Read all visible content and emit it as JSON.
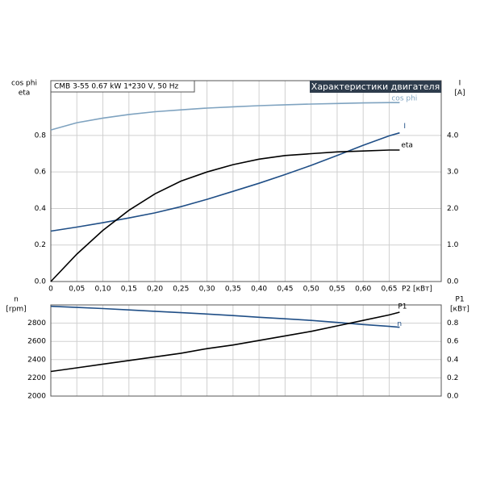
{
  "chart_data": [
    {
      "type": "line",
      "header": "CMB 3-55   0.67 kW   1*230 V, 50 Hz",
      "title": "Характеристики двигателя",
      "ylabel_lines": [
        "cos phi",
        "eta"
      ],
      "y2label_lines": [
        "I",
        "[A]"
      ],
      "xlabel": "P2 [кВт]",
      "xlim": [
        0,
        0.75
      ],
      "xticks": [
        0,
        {
          "value": 0.05,
          "label": "0,05"
        },
        {
          "value": 0.1,
          "label": "0,10"
        },
        {
          "value": 0.15,
          "label": "0,15"
        },
        {
          "value": 0.2,
          "label": "0,20"
        },
        {
          "value": 0.25,
          "label": "0,25"
        },
        {
          "value": 0.3,
          "label": "0,30"
        },
        {
          "value": 0.35,
          "label": "0,35"
        },
        {
          "value": 0.4,
          "label": "0,40"
        },
        {
          "value": 0.45,
          "label": "0,45"
        },
        {
          "value": 0.5,
          "label": "0,50"
        },
        {
          "value": 0.55,
          "label": "0,55"
        },
        {
          "value": 0.6,
          "label": "0,60"
        },
        {
          "value": 0.65,
          "label": "0,65"
        }
      ],
      "ylim": [
        0,
        1.1
      ],
      "yticks": [
        {
          "value": 0,
          "label": "0.0"
        },
        0.2,
        0.4,
        0.6,
        0.8
      ],
      "y2lim": [
        0,
        5.5
      ],
      "y2ticks": [
        {
          "value": 0,
          "label": "0.0"
        },
        {
          "value": 1,
          "label": "1.0"
        },
        {
          "value": 2,
          "label": "2.0"
        },
        {
          "value": 3,
          "label": "3.0"
        },
        {
          "value": 4,
          "label": "4.0"
        }
      ],
      "grid": true,
      "x": [
        0,
        0.05,
        0.1,
        0.15,
        0.2,
        0.25,
        0.3,
        0.35,
        0.4,
        0.45,
        0.5,
        0.55,
        0.6,
        0.65,
        0.67
      ],
      "series": [
        {
          "name": "cos phi",
          "color": "#7fa3c0",
          "values": [
            0.83,
            0.87,
            0.895,
            0.915,
            0.93,
            0.94,
            0.95,
            0.957,
            0.963,
            0.968,
            0.972,
            0.975,
            0.978,
            0.98,
            0.98
          ]
        },
        {
          "name": "I",
          "color": "#1f4e86",
          "axis": "y2",
          "values": [
            1.38,
            1.49,
            1.61,
            1.74,
            1.88,
            2.05,
            2.25,
            2.47,
            2.69,
            2.93,
            3.18,
            3.45,
            3.73,
            3.99,
            4.07
          ]
        },
        {
          "name": "eta",
          "color": "#000000",
          "values": [
            0,
            0.15,
            0.28,
            0.39,
            0.48,
            0.55,
            0.6,
            0.64,
            0.67,
            0.69,
            0.7,
            0.71,
            0.715,
            0.72,
            0.72
          ]
        }
      ]
    },
    {
      "type": "line",
      "ylabel_lines": [
        "n",
        "[rpm]"
      ],
      "y2label_lines": [
        "P1",
        "[кВт]"
      ],
      "xlim": [
        0,
        0.75
      ],
      "xticks": [
        0,
        0.05,
        0.1,
        0.15,
        0.2,
        0.25,
        0.3,
        0.35,
        0.4,
        0.45,
        0.5,
        0.55,
        0.6,
        0.65
      ],
      "ylim": [
        2000,
        3000
      ],
      "yticks": [
        2000,
        2200,
        2400,
        2600,
        2800
      ],
      "y2lim": [
        0,
        1.0
      ],
      "y2ticks": [
        {
          "value": 0,
          "label": "0.0"
        },
        0.2,
        0.4,
        0.6,
        0.8
      ],
      "grid": true,
      "x": [
        0,
        0.05,
        0.1,
        0.15,
        0.2,
        0.25,
        0.3,
        0.35,
        0.4,
        0.45,
        0.5,
        0.55,
        0.6,
        0.65,
        0.67
      ],
      "series": [
        {
          "name": "n",
          "color": "#1f4e86",
          "values": [
            2985,
            2973,
            2960,
            2945,
            2930,
            2915,
            2900,
            2883,
            2865,
            2848,
            2830,
            2808,
            2785,
            2765,
            2755
          ]
        },
        {
          "name": "P1",
          "color": "#000000",
          "axis": "y2",
          "values": [
            0.27,
            0.31,
            0.35,
            0.39,
            0.43,
            0.47,
            0.52,
            0.56,
            0.61,
            0.66,
            0.71,
            0.77,
            0.83,
            0.89,
            0.92
          ]
        }
      ]
    }
  ]
}
